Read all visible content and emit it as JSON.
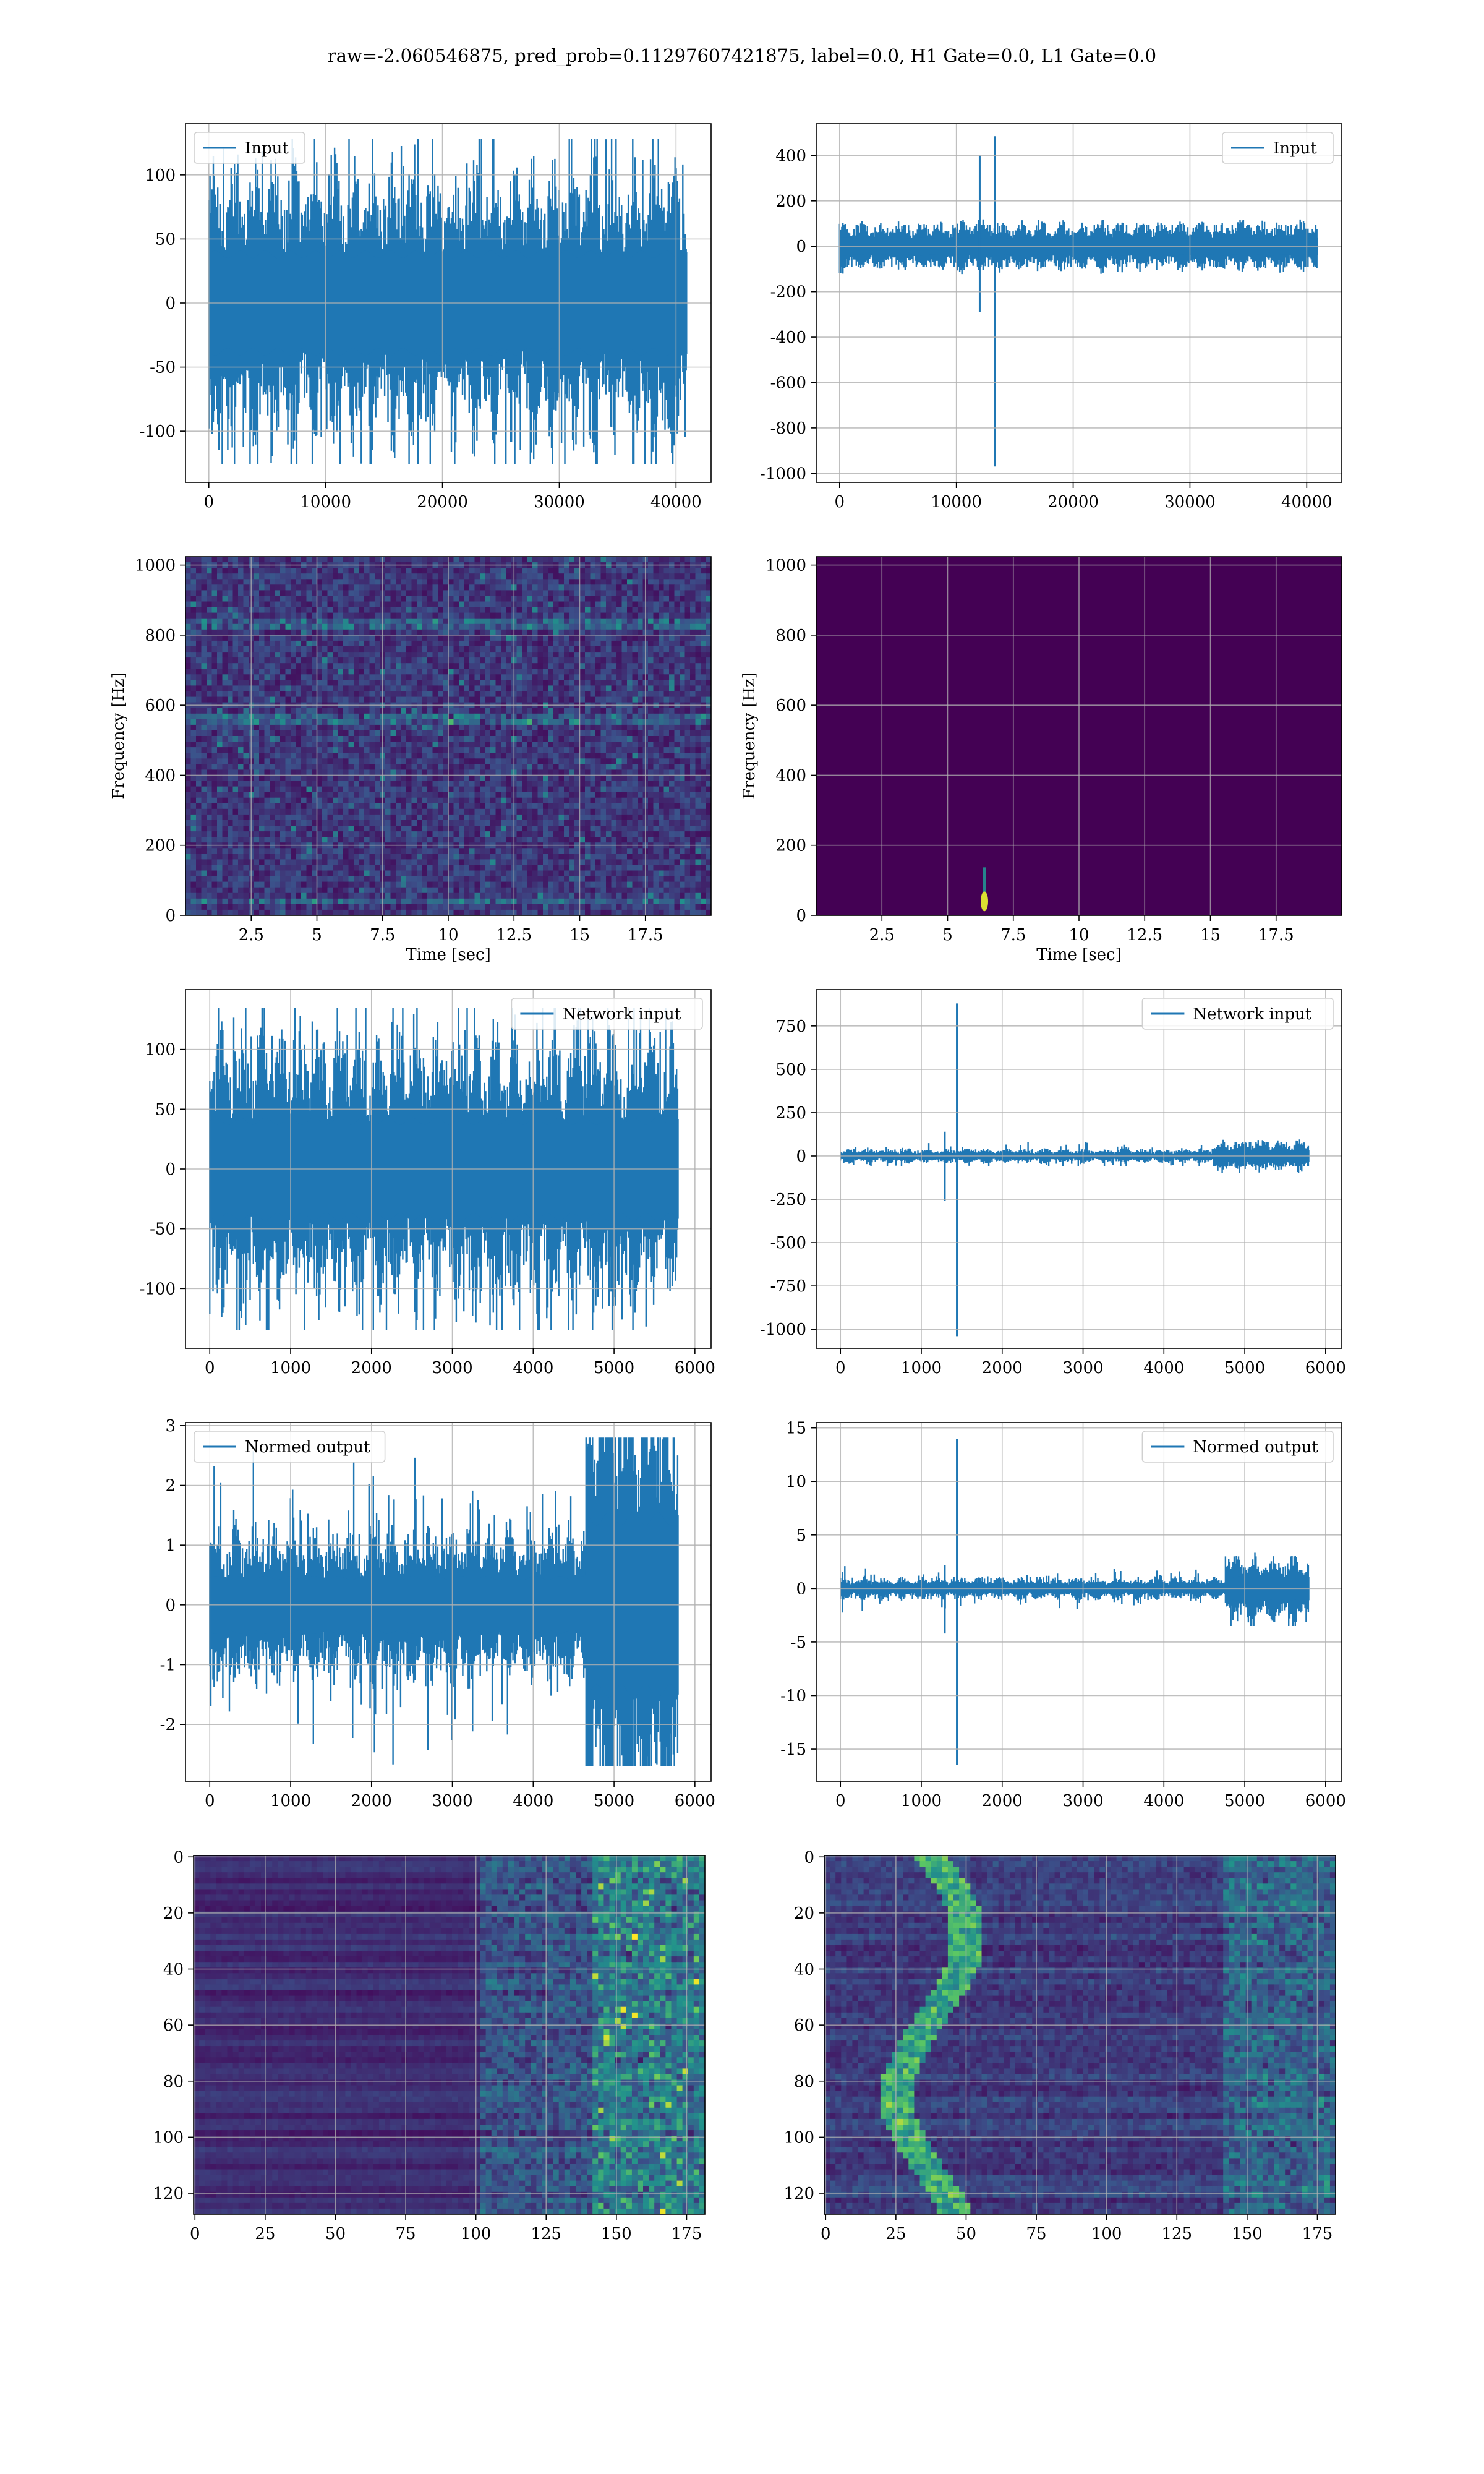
{
  "figure": {
    "suptitle": "raw=-2.060546875, pred_prob=0.11297607421875, label=0.0, H1 Gate=0.0, L1 Gate=0.0",
    "colors": {
      "line": "#1f77b4",
      "viridis_dark": "#440154",
      "viridis_mid": "#21918c",
      "viridis_bright": "#fde725",
      "grid": "#b0b0b0"
    }
  },
  "chart_data": [
    {
      "id": "input-h1",
      "type": "line",
      "legend": "Input",
      "legend_loc": "upper-left",
      "xlim": [
        -2000,
        43000
      ],
      "ylim": [
        -140,
        140
      ],
      "xticks": [
        0,
        10000,
        20000,
        30000,
        40000
      ],
      "yticks": [
        -100,
        -50,
        0,
        50,
        100
      ],
      "grid": true,
      "signal": {
        "n": 40960,
        "band": 38,
        "peak_max": 128,
        "peak_min": -126,
        "spikes": []
      }
    },
    {
      "id": "input-l1",
      "type": "line",
      "legend": "Input",
      "legend_loc": "upper-right",
      "xlim": [
        -2000,
        43000
      ],
      "ylim": [
        -1040,
        540
      ],
      "xticks": [
        0,
        10000,
        20000,
        30000,
        40000
      ],
      "yticks": [
        -1000,
        -800,
        -600,
        -400,
        -200,
        0,
        200,
        400
      ],
      "grid": true,
      "signal": {
        "n": 40960,
        "band": 38,
        "peak_max": 95,
        "peak_min": -90,
        "spikes": [
          {
            "x": 12000,
            "y": 400
          },
          {
            "x": 12000,
            "y": -290
          },
          {
            "x": 13300,
            "y": 485
          },
          {
            "x": 13300,
            "y": -970
          }
        ]
      }
    },
    {
      "id": "spec-h1",
      "type": "heatmap",
      "xlabel": "Time [sec]",
      "ylabel": "Frequency [Hz]",
      "xlim": [
        0,
        20
      ],
      "ylim": [
        0,
        1024
      ],
      "xticks": [
        2.5,
        5.0,
        7.5,
        10.0,
        12.5,
        15.0,
        17.5
      ],
      "yticks": [
        0,
        200,
        400,
        600,
        800,
        1000
      ],
      "grid": true,
      "features": {
        "noise": "uniform",
        "lines_hz": [
          830,
          555,
          40
        ]
      }
    },
    {
      "id": "spec-l1",
      "type": "heatmap",
      "xlabel": "Time [sec]",
      "ylabel": "Frequency [Hz]",
      "xlim": [
        0,
        20
      ],
      "ylim": [
        0,
        1024
      ],
      "xticks": [
        2.5,
        5.0,
        7.5,
        10.0,
        12.5,
        15.0,
        17.5
      ],
      "yticks": [
        0,
        200,
        400,
        600,
        800,
        1000
      ],
      "grid": true,
      "features": {
        "noise": "dark",
        "blob": {
          "t": 6.4,
          "f": 40
        }
      }
    },
    {
      "id": "network-input-h1",
      "type": "line",
      "legend": "Network input",
      "legend_loc": "upper-right",
      "xlim": [
        -300,
        6200
      ],
      "ylim": [
        -150,
        150
      ],
      "xticks": [
        0,
        1000,
        2000,
        3000,
        4000,
        5000,
        6000
      ],
      "yticks": [
        -100,
        -50,
        0,
        50,
        100
      ],
      "grid": true,
      "signal": {
        "n": 5800,
        "band": 40,
        "peak_max": 135,
        "peak_min": -135,
        "spikes": []
      }
    },
    {
      "id": "network-input-l1",
      "type": "line",
      "legend": "Network input",
      "legend_loc": "upper-right",
      "xlim": [
        -300,
        6200
      ],
      "ylim": [
        -1110,
        960
      ],
      "xticks": [
        0,
        1000,
        2000,
        3000,
        4000,
        5000,
        6000
      ],
      "yticks": [
        -1000,
        -750,
        -500,
        -250,
        0,
        250,
        500,
        750
      ],
      "grid": true,
      "signal": {
        "n": 5800,
        "band": 14,
        "peak_max": 80,
        "peak_min": -60,
        "spikes": [
          {
            "x": 1290,
            "y": 140
          },
          {
            "x": 1290,
            "y": -260
          },
          {
            "x": 1440,
            "y": 880
          },
          {
            "x": 1440,
            "y": -1040
          }
        ]
      }
    },
    {
      "id": "normed-output-h1",
      "type": "line",
      "legend": "Normed output",
      "legend_loc": "upper-left",
      "xlim": [
        -300,
        6200
      ],
      "ylim": [
        -2.95,
        3.05
      ],
      "xticks": [
        0,
        1000,
        2000,
        3000,
        4000,
        5000,
        6000
      ],
      "yticks": [
        -2,
        -1,
        0,
        1,
        2,
        3
      ],
      "grid": true,
      "signal": {
        "n": 5800,
        "band": 0.45,
        "peak_max": 2.8,
        "peak_min": -2.7,
        "spikes": []
      }
    },
    {
      "id": "normed-output-l1",
      "type": "line",
      "legend": "Normed output",
      "legend_loc": "upper-right",
      "xlim": [
        -300,
        6200
      ],
      "ylim": [
        -18,
        15.5
      ],
      "xticks": [
        0,
        1000,
        2000,
        3000,
        4000,
        5000,
        6000
      ],
      "yticks": [
        -15,
        -10,
        -5,
        0,
        5,
        10,
        15
      ],
      "grid": true,
      "signal": {
        "n": 5800,
        "band": 0.35,
        "peak_max": 3,
        "peak_min": -3.5,
        "spikes": [
          {
            "x": 1290,
            "y": 2.2
          },
          {
            "x": 1290,
            "y": -4.2
          },
          {
            "x": 1440,
            "y": 14
          },
          {
            "x": 1440,
            "y": -16.5
          }
        ]
      }
    },
    {
      "id": "features-h1",
      "type": "heatmap",
      "xlim": [
        -0.5,
        181.5
      ],
      "ylim": [
        127.5,
        -0.5
      ],
      "xticks": [
        0,
        25,
        50,
        75,
        100,
        125,
        150,
        175
      ],
      "yticks": [
        0,
        20,
        40,
        60,
        80,
        100,
        120
      ],
      "grid": true,
      "features": {
        "active_from_col": 100,
        "bright_from_col": 140
      }
    },
    {
      "id": "features-l1",
      "type": "heatmap",
      "xlim": [
        -0.5,
        181.5
      ],
      "ylim": [
        127.5,
        -0.5
      ],
      "xticks": [
        0,
        25,
        50,
        75,
        100,
        125,
        150,
        175
      ],
      "yticks": [
        0,
        20,
        40,
        60,
        80,
        100,
        120
      ],
      "grid": true,
      "features": {
        "ridge_cols": [
          25,
          50
        ],
        "active_from_col": 140
      }
    }
  ]
}
